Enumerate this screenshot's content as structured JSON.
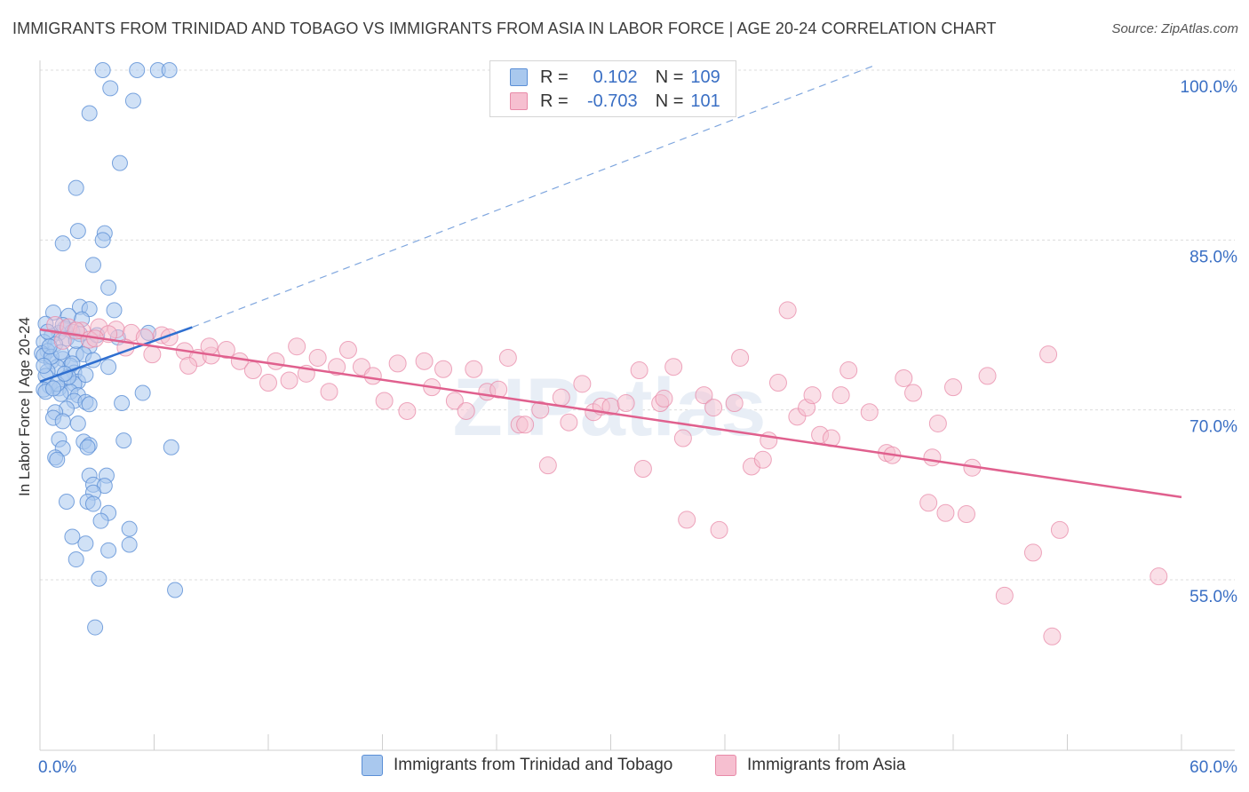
{
  "header": {
    "title": "IMMIGRANTS FROM TRINIDAD AND TOBAGO VS IMMIGRANTS FROM ASIA IN LABOR FORCE | AGE 20-24 CORRELATION CHART",
    "source": "Source: ZipAtlas.com"
  },
  "watermark": "ZIPatlas",
  "legend": {
    "r_label": "R =",
    "n_label": "N =",
    "series1": {
      "r": "0.102",
      "n": "109"
    },
    "series2": {
      "r": "-0.703",
      "n": "101"
    }
  },
  "colors": {
    "blue_fill": "#a9c8ee",
    "blue_stroke": "#5b8fd6",
    "blue_line": "#2f6fd0",
    "pink_fill": "#f6bfd0",
    "pink_stroke": "#e88aa8",
    "pink_line": "#e0608e",
    "tick_text": "#3a6fc4"
  },
  "chart_data": {
    "type": "scatter",
    "ylabel": "In Labor Force | Age 20-24",
    "x_ticks": [
      "0.0%",
      "60.0%"
    ],
    "y_ticks": [
      "100.0%",
      "85.0%",
      "70.0%",
      "55.0%"
    ],
    "xlim": [
      0,
      60
    ],
    "ylim": [
      40,
      101.5
    ],
    "series": [
      {
        "name": "Immigrants from Trinidad and Tobago",
        "trend": {
          "x": [
            0,
            8
          ],
          "y": [
            72.5,
            77.3
          ]
        },
        "trend_extension": {
          "x": [
            8,
            44
          ],
          "y": [
            77.3,
            100.5
          ]
        },
        "points": [
          [
            3.3,
            100
          ],
          [
            5.1,
            100
          ],
          [
            6.2,
            100
          ],
          [
            6.8,
            100
          ],
          [
            3.7,
            98.4
          ],
          [
            4.9,
            97.3
          ],
          [
            2.6,
            96.2
          ],
          [
            4.2,
            91.8
          ],
          [
            1.9,
            89.6
          ],
          [
            2.0,
            85.8
          ],
          [
            3.4,
            85.6
          ],
          [
            3.3,
            85.0
          ],
          [
            1.2,
            84.7
          ],
          [
            2.8,
            82.8
          ],
          [
            3.6,
            80.8
          ],
          [
            2.1,
            79.1
          ],
          [
            2.6,
            78.9
          ],
          [
            0.7,
            78.6
          ],
          [
            3.9,
            78.8
          ],
          [
            1.5,
            78.3
          ],
          [
            2.2,
            78.0
          ],
          [
            0.3,
            77.6
          ],
          [
            1.3,
            77.2
          ],
          [
            1.7,
            76.9
          ],
          [
            1.0,
            76.8
          ],
          [
            2.1,
            76.7
          ],
          [
            0.6,
            76.5
          ],
          [
            1.4,
            76.3
          ],
          [
            5.7,
            76.8
          ],
          [
            4.1,
            76.4
          ],
          [
            0.2,
            76.0
          ],
          [
            0.8,
            75.8
          ],
          [
            2.6,
            75.6
          ],
          [
            0.4,
            75.2
          ],
          [
            0.1,
            75.0
          ],
          [
            1.9,
            74.9
          ],
          [
            2.3,
            74.9
          ],
          [
            0.2,
            74.8
          ],
          [
            1.2,
            74.5
          ],
          [
            0.6,
            74.3
          ],
          [
            1.6,
            73.9
          ],
          [
            0.9,
            73.8
          ],
          [
            3.6,
            73.8
          ],
          [
            0.4,
            73.4
          ],
          [
            1.8,
            73.3
          ],
          [
            0.3,
            73.0
          ],
          [
            1.4,
            72.8
          ],
          [
            2.0,
            72.5
          ],
          [
            0.5,
            72.1
          ],
          [
            1.8,
            72.3
          ],
          [
            1.0,
            71.9
          ],
          [
            1.6,
            71.6
          ],
          [
            0.2,
            71.8
          ],
          [
            1.1,
            71.4
          ],
          [
            2.0,
            71.3
          ],
          [
            5.4,
            71.5
          ],
          [
            1.8,
            70.8
          ],
          [
            2.4,
            70.7
          ],
          [
            4.3,
            70.6
          ],
          [
            2.6,
            70.5
          ],
          [
            1.4,
            70.1
          ],
          [
            0.8,
            69.8
          ],
          [
            0.7,
            69.3
          ],
          [
            1.2,
            69.0
          ],
          [
            2.0,
            68.8
          ],
          [
            1.0,
            67.4
          ],
          [
            2.3,
            67.2
          ],
          [
            4.4,
            67.3
          ],
          [
            2.6,
            66.9
          ],
          [
            1.2,
            66.6
          ],
          [
            2.5,
            66.7
          ],
          [
            6.9,
            66.7
          ],
          [
            0.8,
            65.8
          ],
          [
            0.9,
            65.6
          ],
          [
            2.6,
            64.2
          ],
          [
            3.5,
            64.2
          ],
          [
            2.8,
            63.4
          ],
          [
            3.4,
            63.3
          ],
          [
            2.8,
            62.7
          ],
          [
            1.4,
            61.9
          ],
          [
            2.5,
            61.9
          ],
          [
            2.8,
            61.7
          ],
          [
            3.6,
            60.9
          ],
          [
            3.2,
            60.2
          ],
          [
            4.7,
            59.5
          ],
          [
            1.7,
            58.8
          ],
          [
            2.4,
            58.2
          ],
          [
            4.7,
            58.1
          ],
          [
            3.6,
            57.6
          ],
          [
            1.9,
            56.8
          ],
          [
            3.1,
            55.1
          ],
          [
            7.1,
            54.1
          ],
          [
            2.9,
            50.8
          ],
          [
            0.4,
            76.9
          ],
          [
            0.6,
            74.7
          ],
          [
            1.1,
            75.1
          ],
          [
            0.2,
            73.9
          ],
          [
            2.8,
            74.4
          ],
          [
            1.5,
            72.9
          ],
          [
            0.9,
            72.3
          ],
          [
            0.3,
            71.6
          ],
          [
            1.7,
            74.1
          ],
          [
            2.4,
            73.1
          ],
          [
            0.5,
            75.6
          ],
          [
            1.3,
            73.2
          ],
          [
            0.7,
            71.9
          ],
          [
            3.0,
            76.6
          ],
          [
            1.9,
            76.1
          ],
          [
            1.2,
            77.5
          ]
        ]
      },
      {
        "name": "Immigrants from Asia",
        "trend": {
          "x": [
            0,
            60
          ],
          "y": [
            77.1,
            62.3
          ]
        },
        "points": [
          [
            0.8,
            77.5
          ],
          [
            1.5,
            77.3
          ],
          [
            2.2,
            77.0
          ],
          [
            3.1,
            77.3
          ],
          [
            4.0,
            77.1
          ],
          [
            4.8,
            76.8
          ],
          [
            5.5,
            76.4
          ],
          [
            6.4,
            76.6
          ],
          [
            3.6,
            76.7
          ],
          [
            2.6,
            76.2
          ],
          [
            1.2,
            76.1
          ],
          [
            4.5,
            75.5
          ],
          [
            5.9,
            74.9
          ],
          [
            7.6,
            75.2
          ],
          [
            8.3,
            74.6
          ],
          [
            9.0,
            74.8
          ],
          [
            9.8,
            75.3
          ],
          [
            10.5,
            74.3
          ],
          [
            7.8,
            73.9
          ],
          [
            11.2,
            73.5
          ],
          [
            12.0,
            72.4
          ],
          [
            12.4,
            74.3
          ],
          [
            13.1,
            72.6
          ],
          [
            14.0,
            73.2
          ],
          [
            13.5,
            75.6
          ],
          [
            14.6,
            74.6
          ],
          [
            15.2,
            71.6
          ],
          [
            15.6,
            73.8
          ],
          [
            16.2,
            75.3
          ],
          [
            16.9,
            73.8
          ],
          [
            17.5,
            73.0
          ],
          [
            18.1,
            70.8
          ],
          [
            18.8,
            74.1
          ],
          [
            19.3,
            69.9
          ],
          [
            20.2,
            74.3
          ],
          [
            20.6,
            72.0
          ],
          [
            21.2,
            73.6
          ],
          [
            21.8,
            70.8
          ],
          [
            22.4,
            69.9
          ],
          [
            22.8,
            73.6
          ],
          [
            23.5,
            71.6
          ],
          [
            24.1,
            71.8
          ],
          [
            24.6,
            74.6
          ],
          [
            25.2,
            68.7
          ],
          [
            25.5,
            68.7
          ],
          [
            26.3,
            70.0
          ],
          [
            26.7,
            65.1
          ],
          [
            27.4,
            71.1
          ],
          [
            27.8,
            68.9
          ],
          [
            28.5,
            72.3
          ],
          [
            29.1,
            69.8
          ],
          [
            29.5,
            70.3
          ],
          [
            30.0,
            70.3
          ],
          [
            30.8,
            70.6
          ],
          [
            31.5,
            73.5
          ],
          [
            31.7,
            64.8
          ],
          [
            32.6,
            70.6
          ],
          [
            32.8,
            71.0
          ],
          [
            33.3,
            73.8
          ],
          [
            33.8,
            67.5
          ],
          [
            34.0,
            60.3
          ],
          [
            34.9,
            71.3
          ],
          [
            35.4,
            70.2
          ],
          [
            35.7,
            59.4
          ],
          [
            36.5,
            70.6
          ],
          [
            36.8,
            74.6
          ],
          [
            37.4,
            65.0
          ],
          [
            38.0,
            65.6
          ],
          [
            38.3,
            67.3
          ],
          [
            38.8,
            72.4
          ],
          [
            39.3,
            78.8
          ],
          [
            39.8,
            69.4
          ],
          [
            40.3,
            70.2
          ],
          [
            40.6,
            71.3
          ],
          [
            41.0,
            67.8
          ],
          [
            41.6,
            67.5
          ],
          [
            42.1,
            71.3
          ],
          [
            42.5,
            73.5
          ],
          [
            43.6,
            69.8
          ],
          [
            44.5,
            66.2
          ],
          [
            44.8,
            66.0
          ],
          [
            45.4,
            72.8
          ],
          [
            45.9,
            71.5
          ],
          [
            46.7,
            61.8
          ],
          [
            46.9,
            65.8
          ],
          [
            47.2,
            68.8
          ],
          [
            47.6,
            60.9
          ],
          [
            48.0,
            72.0
          ],
          [
            48.7,
            60.8
          ],
          [
            49.0,
            64.9
          ],
          [
            49.8,
            73.0
          ],
          [
            50.7,
            53.6
          ],
          [
            52.2,
            57.4
          ],
          [
            53.2,
            50.0
          ],
          [
            53.6,
            59.4
          ],
          [
            1.9,
            77.0
          ],
          [
            2.9,
            76.3
          ],
          [
            6.8,
            76.4
          ],
          [
            8.9,
            75.6
          ],
          [
            58.8,
            55.3
          ],
          [
            53.0,
            74.9
          ]
        ]
      }
    ]
  },
  "bottom_legend": {
    "series1": "Immigrants from Trinidad and Tobago",
    "series2": "Immigrants from Asia"
  }
}
